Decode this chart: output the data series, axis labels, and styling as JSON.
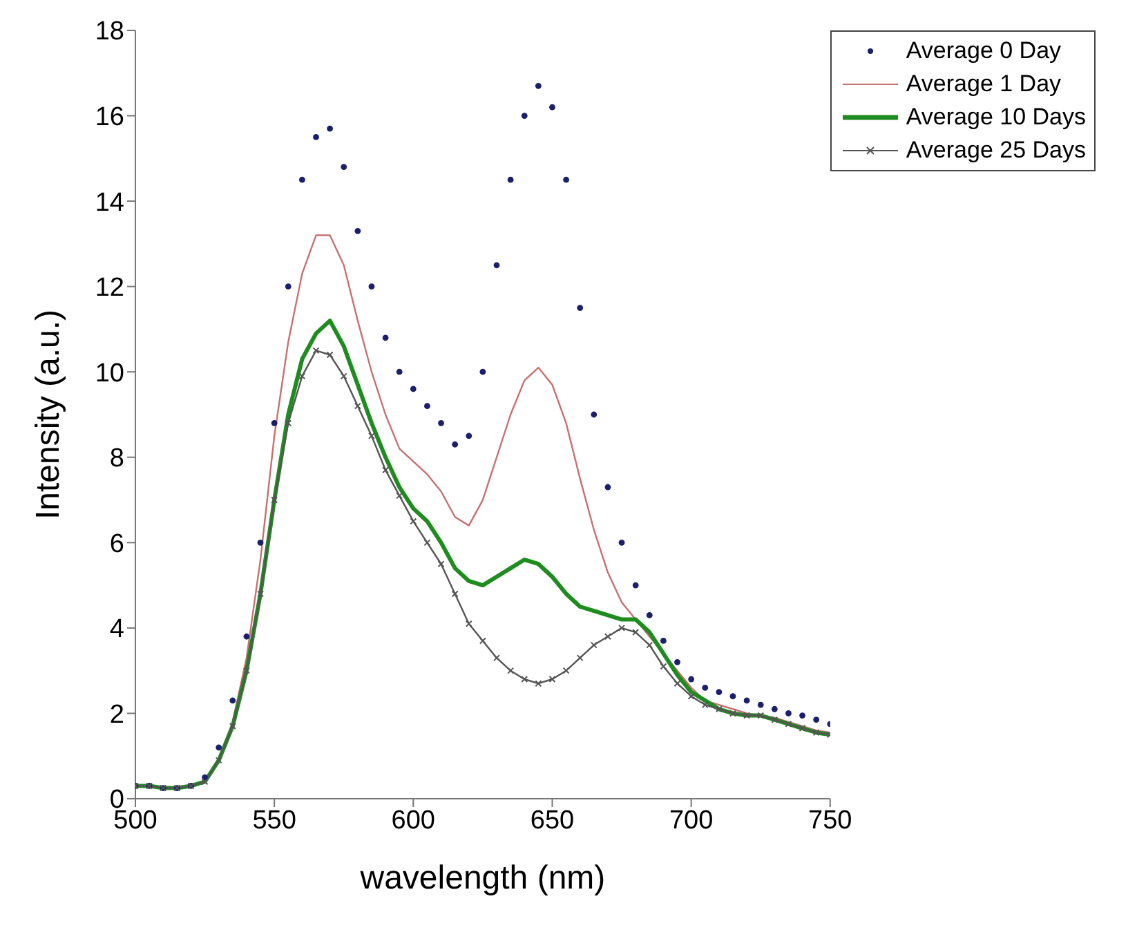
{
  "chart_data": {
    "type": "line",
    "xlabel": "wavelength (nm)",
    "ylabel": "Intensity (a.u.)",
    "x": [
      500,
      505,
      510,
      515,
      520,
      525,
      530,
      535,
      540,
      545,
      550,
      555,
      560,
      565,
      570,
      575,
      580,
      585,
      590,
      595,
      600,
      605,
      610,
      615,
      620,
      625,
      630,
      635,
      640,
      645,
      650,
      655,
      660,
      665,
      670,
      675,
      680,
      685,
      690,
      695,
      700,
      705,
      710,
      715,
      720,
      725,
      730,
      735,
      740,
      745,
      750
    ],
    "series": [
      {
        "name": "Average 0 Day",
        "type": "scatter",
        "marker": "circle",
        "color": "#1a1f6e",
        "values": [
          0.3,
          0.3,
          0.25,
          0.25,
          0.3,
          0.5,
          1.2,
          2.3,
          3.8,
          6,
          8.8,
          12,
          14.5,
          15.5,
          15.7,
          14.8,
          13.3,
          12,
          10.8,
          10,
          9.6,
          9.2,
          8.8,
          8.3,
          8.5,
          10,
          12.5,
          14.5,
          16,
          16.7,
          16.2,
          14.5,
          11.5,
          9,
          7.3,
          6,
          5,
          4.3,
          3.7,
          3.2,
          2.8,
          2.6,
          2.5,
          2.4,
          2.3,
          2.2,
          2.1,
          2,
          1.95,
          1.85,
          1.75
        ]
      },
      {
        "name": "Average 1 Day",
        "marker": "none",
        "color": "#c87070",
        "values": [
          null,
          null,
          null,
          null,
          null,
          null,
          0.9,
          1.8,
          3.3,
          5.6,
          8.5,
          10.7,
          12.3,
          13.2,
          13.2,
          12.5,
          11.2,
          10,
          9,
          8.2,
          7.9,
          7.6,
          7.2,
          6.6,
          6.4,
          7,
          8,
          9,
          9.8,
          10.1,
          9.7,
          8.8,
          7.5,
          6.3,
          5.3,
          4.6,
          4.2,
          3.8,
          3.4,
          3,
          2.6,
          2.3,
          2.2,
          2.1,
          2,
          1.95,
          1.9,
          1.8,
          1.7,
          1.6,
          1.55
        ]
      },
      {
        "name": "Average 10 Days",
        "marker": "none",
        "color": "#1e8c1e",
        "values": [
          0.3,
          0.3,
          0.25,
          0.25,
          0.3,
          0.4,
          0.9,
          1.7,
          3,
          4.8,
          7,
          9,
          10.3,
          10.9,
          11.2,
          10.6,
          9.7,
          8.8,
          8,
          7.3,
          6.8,
          6.5,
          6,
          5.4,
          5.1,
          5,
          5.2,
          5.4,
          5.6,
          5.5,
          5.2,
          4.8,
          4.5,
          4.4,
          4.3,
          4.2,
          4.2,
          3.9,
          3.4,
          2.9,
          2.5,
          2.3,
          2.1,
          2,
          1.95,
          1.95,
          1.85,
          1.75,
          1.65,
          1.55,
          1.5
        ]
      },
      {
        "name": "Average 25 Days",
        "marker": "cross",
        "color": "#555555",
        "values": [
          0.3,
          0.3,
          0.25,
          0.25,
          0.3,
          0.4,
          0.9,
          1.7,
          3,
          4.8,
          7,
          8.8,
          9.9,
          10.5,
          10.4,
          9.9,
          9.2,
          8.5,
          7.7,
          7.1,
          6.5,
          6,
          5.5,
          4.8,
          4.1,
          3.7,
          3.3,
          3,
          2.8,
          2.7,
          2.8,
          3,
          3.3,
          3.6,
          3.8,
          4,
          3.9,
          3.6,
          3.1,
          2.7,
          2.4,
          2.2,
          2.1,
          2,
          1.95,
          1.95,
          1.85,
          1.75,
          1.65,
          1.55,
          1.5
        ]
      }
    ],
    "xlim": [
      500,
      750
    ],
    "xticks": [
      500,
      550,
      600,
      650,
      700,
      750
    ],
    "ylim": [
      0,
      18
    ],
    "yticks": [
      0,
      2,
      4,
      6,
      8,
      10,
      12,
      14,
      16,
      18
    ],
    "grid": false,
    "legend": "top right"
  }
}
